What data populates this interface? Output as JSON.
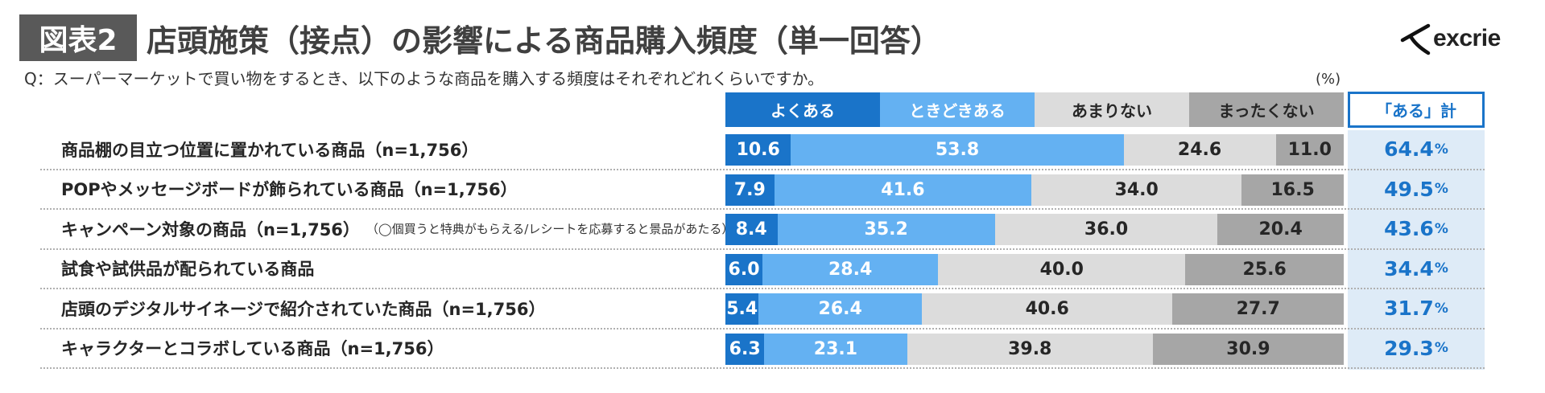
{
  "header": {
    "figure_label": "図表2",
    "title": "店頭施策（接点）の影響による商品購入頻度（単一回答）",
    "logo_text": "excrie",
    "question": "Q：スーパーマーケットで買い物をするとき、以下のような商品を購入する頻度はそれぞれどれくらいですか。",
    "unit": "(%)"
  },
  "colors": {
    "often": "#1a74c9",
    "sometimes": "#64b1f2",
    "rarely": "#dcdcdc",
    "never": "#a6a6a6",
    "total_text": "#1a74c9"
  },
  "chart_data": {
    "type": "bar",
    "orientation": "horizontal",
    "stacked": "100%",
    "categories": [
      "商品棚の目立つ位置に置かれている商品（n=1,756）",
      "POPやメッセージボードが飾られている商品（n=1,756）",
      "キャンペーン対象の商品（n=1,756）",
      "試食や試供品が配られている商品",
      "店頭のデジタルサイネージで紹介されていた商品（n=1,756）",
      "キャラクターとコラボしている商品（n=1,756）"
    ],
    "category_notes": [
      "",
      "",
      "（◯個買うと特典がもらえる/レシートを応募すると景品があたる）",
      "",
      "",
      ""
    ],
    "series": [
      {
        "name": "よくある",
        "values": [
          10.6,
          7.9,
          8.4,
          6.0,
          5.4,
          6.3
        ]
      },
      {
        "name": "ときどきある",
        "values": [
          53.8,
          41.6,
          35.2,
          28.4,
          26.4,
          23.1
        ]
      },
      {
        "name": "あまりない",
        "values": [
          24.6,
          34.0,
          36.0,
          40.0,
          40.6,
          39.8
        ]
      },
      {
        "name": "まったくない",
        "values": [
          11.0,
          16.5,
          20.4,
          25.6,
          27.7,
          30.9
        ]
      }
    ],
    "total_label": "「ある」計",
    "totals": [
      "64.4",
      "49.5",
      "43.6",
      "34.4",
      "31.7",
      "29.3"
    ],
    "total_suffix": "%",
    "xlim": [
      0,
      100
    ]
  }
}
